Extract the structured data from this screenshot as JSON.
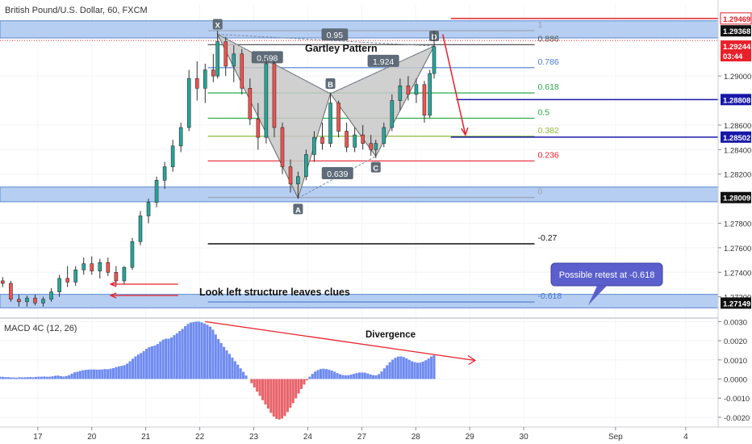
{
  "header": {
    "title": "British Pound/U.S. Dollar, 60, FXCM"
  },
  "macd_label": "MACD 4C (12, 26)",
  "annotations": {
    "pattern_title": "Gartley Pattern",
    "look_left": "Look left structure leaves clues",
    "retest_callout": "Possible retest at -0.618",
    "divergence": "Divergence"
  },
  "colors": {
    "zone_fill": "#a9c6ee",
    "zone_stroke": "#5b88cf",
    "red": "#e8202a",
    "blue": "#1717a8",
    "green": "#27a745",
    "black": "#111111",
    "pattern_fill": "#c8c8c8",
    "callout_bg": "#5a5fcc",
    "macd_pos": "#6f8bf0",
    "macd_neg": "#e8636a"
  },
  "chart_data": {
    "type": "candlestick",
    "price_axis": {
      "ylim": [
        1.2704,
        1.2958
      ],
      "ticks": [
        "1.29000",
        "1.28600",
        "1.28400",
        "1.28200",
        "1.27800",
        "1.27600",
        "1.27400",
        "1.27200"
      ],
      "tick_values": [
        1.29,
        1.286,
        1.284,
        1.282,
        1.278,
        1.276,
        1.274,
        1.272
      ]
    },
    "macd_axis": {
      "ylim": [
        -0.0023,
        0.0031
      ],
      "ticks": [
        "0.0030",
        "0.0020",
        "0.0010",
        "0.0000",
        "-0.0010",
        "-0.0020"
      ],
      "tick_values": [
        0.003,
        0.002,
        0.001,
        0,
        -0.001,
        -0.002
      ]
    },
    "x_axis": {
      "labels": [
        "17",
        "20",
        "21",
        "22",
        "23",
        "24",
        "27",
        "28",
        "29",
        "30",
        "Sep",
        "4"
      ],
      "positions": [
        0.3,
        1.3,
        2.3,
        3.3,
        4.3,
        5.3,
        6.3,
        7.3,
        8.3,
        9.3,
        11.0,
        12.3
      ],
      "xlim": [
        -0.4,
        12.9
      ]
    },
    "price_labels": [
      {
        "text": "1.29469",
        "value": 1.29469,
        "style": "red-outline"
      },
      {
        "text": "1.29368",
        "value": 1.29368,
        "style": "black"
      },
      {
        "text": "1.29244",
        "value": 1.29244,
        "style": "red"
      },
      {
        "text": "03:44",
        "value": 1.29165,
        "style": "red"
      },
      {
        "text": "1.28808",
        "value": 1.28808,
        "style": "blue"
      },
      {
        "text": "1.28502",
        "value": 1.28502,
        "style": "blue"
      },
      {
        "text": "1.28009",
        "value": 1.28009,
        "style": "black"
      },
      {
        "text": "1.27149",
        "value": 1.27149,
        "style": "black"
      }
    ],
    "fib_levels": [
      {
        "label": "1",
        "value": 1.2937,
        "color": "#9aa3b5"
      },
      {
        "label": "0.886",
        "value": 1.29255,
        "color": "#555555"
      },
      {
        "label": "0.786",
        "value": 1.29068,
        "color": "#4a7bd0"
      },
      {
        "label": "0.618",
        "value": 1.28862,
        "color": "#27a745"
      },
      {
        "label": "0.5",
        "value": 1.28656,
        "color": "#27a745"
      },
      {
        "label": "0.382",
        "value": 1.28509,
        "color": "#8cba3a"
      },
      {
        "label": "0.236",
        "value": 1.28308,
        "color": "#e8202a"
      },
      {
        "label": "0",
        "value": 1.2801,
        "color": "#9aa3b5"
      },
      {
        "label": "-0.27",
        "value": 1.27632,
        "color": "#111111"
      },
      {
        "label": "-0.618",
        "value": 1.27158,
        "color": "#4a7bd0"
      }
    ],
    "zones": [
      {
        "from": 1.2931,
        "to": 1.2945
      },
      {
        "from": 1.27975,
        "to": 1.28095
      },
      {
        "from": 1.2711,
        "to": 1.2722
      }
    ],
    "points": [
      {
        "label": "X",
        "x": 3.63,
        "value": 1.2934
      },
      {
        "label": "A",
        "x": 5.12,
        "value": 1.28005
      },
      {
        "label": "B",
        "x": 5.72,
        "value": 1.28856
      },
      {
        "label": "C",
        "x": 6.56,
        "value": 1.28345
      },
      {
        "label": "D",
        "x": 7.64,
        "value": 1.29244
      }
    ],
    "ratios": [
      {
        "label": "0.95",
        "x": 5.8,
        "value": 1.29335
      },
      {
        "label": "0.598",
        "x": 4.55,
        "value": 1.2915
      },
      {
        "label": "1.924",
        "x": 6.7,
        "value": 1.2912
      },
      {
        "label": "0.639",
        "x": 5.85,
        "value": 1.28205
      }
    ],
    "candles": [
      {
        "x": -0.35,
        "o": 1.2733,
        "h": 1.2736,
        "l": 1.2728,
        "c": 1.2731
      },
      {
        "x": -0.2,
        "o": 1.2731,
        "h": 1.2733,
        "l": 1.2716,
        "c": 1.2718
      },
      {
        "x": -0.05,
        "o": 1.2718,
        "h": 1.2722,
        "l": 1.2712,
        "c": 1.2716
      },
      {
        "x": 0.1,
        "o": 1.2716,
        "h": 1.2721,
        "l": 1.2712,
        "c": 1.2719
      },
      {
        "x": 0.25,
        "o": 1.2719,
        "h": 1.2722,
        "l": 1.2713,
        "c": 1.2715
      },
      {
        "x": 0.4,
        "o": 1.2715,
        "h": 1.272,
        "l": 1.2712,
        "c": 1.2718
      },
      {
        "x": 0.55,
        "o": 1.2718,
        "h": 1.2727,
        "l": 1.2716,
        "c": 1.2724
      },
      {
        "x": 0.7,
        "o": 1.2724,
        "h": 1.2738,
        "l": 1.272,
        "c": 1.2735
      },
      {
        "x": 0.85,
        "o": 1.2735,
        "h": 1.2745,
        "l": 1.2728,
        "c": 1.2732
      },
      {
        "x": 1.0,
        "o": 1.2732,
        "h": 1.2745,
        "l": 1.2729,
        "c": 1.2742
      },
      {
        "x": 1.15,
        "o": 1.2742,
        "h": 1.2752,
        "l": 1.2738,
        "c": 1.2747
      },
      {
        "x": 1.3,
        "o": 1.2747,
        "h": 1.2753,
        "l": 1.2738,
        "c": 1.2741
      },
      {
        "x": 1.45,
        "o": 1.2741,
        "h": 1.2751,
        "l": 1.2735,
        "c": 1.2748
      },
      {
        "x": 1.6,
        "o": 1.2748,
        "h": 1.2752,
        "l": 1.2737,
        "c": 1.274
      },
      {
        "x": 1.75,
        "o": 1.274,
        "h": 1.2745,
        "l": 1.2729,
        "c": 1.2733
      },
      {
        "x": 1.9,
        "o": 1.2733,
        "h": 1.2745,
        "l": 1.273,
        "c": 1.2744
      },
      {
        "x": 2.05,
        "o": 1.2744,
        "h": 1.2768,
        "l": 1.2742,
        "c": 1.2765
      },
      {
        "x": 2.2,
        "o": 1.2765,
        "h": 1.279,
        "l": 1.2762,
        "c": 1.2786
      },
      {
        "x": 2.35,
        "o": 1.2786,
        "h": 1.28,
        "l": 1.278,
        "c": 1.2797
      },
      {
        "x": 2.5,
        "o": 1.2797,
        "h": 1.2818,
        "l": 1.2793,
        "c": 1.2815
      },
      {
        "x": 2.65,
        "o": 1.2815,
        "h": 1.283,
        "l": 1.2808,
        "c": 1.2826
      },
      {
        "x": 2.8,
        "o": 1.2826,
        "h": 1.2848,
        "l": 1.2822,
        "c": 1.2843
      },
      {
        "x": 2.95,
        "o": 1.2843,
        "h": 1.2862,
        "l": 1.2838,
        "c": 1.2858
      },
      {
        "x": 3.1,
        "o": 1.2858,
        "h": 1.2905,
        "l": 1.2855,
        "c": 1.2898
      },
      {
        "x": 3.25,
        "o": 1.2898,
        "h": 1.2912,
        "l": 1.288,
        "c": 1.289
      },
      {
        "x": 3.4,
        "o": 1.289,
        "h": 1.291,
        "l": 1.2878,
        "c": 1.2905
      },
      {
        "x": 3.55,
        "o": 1.2905,
        "h": 1.2918,
        "l": 1.2895,
        "c": 1.29
      },
      {
        "x": 3.63,
        "o": 1.29,
        "h": 1.2937,
        "l": 1.2898,
        "c": 1.2928
      },
      {
        "x": 3.78,
        "o": 1.2928,
        "h": 1.2932,
        "l": 1.29,
        "c": 1.2908
      },
      {
        "x": 3.93,
        "o": 1.2908,
        "h": 1.2925,
        "l": 1.2895,
        "c": 1.2918
      },
      {
        "x": 4.08,
        "o": 1.2918,
        "h": 1.2922,
        "l": 1.2885,
        "c": 1.289
      },
      {
        "x": 4.23,
        "o": 1.289,
        "h": 1.2898,
        "l": 1.286,
        "c": 1.2865
      },
      {
        "x": 4.38,
        "o": 1.2865,
        "h": 1.2878,
        "l": 1.284,
        "c": 1.285
      },
      {
        "x": 4.53,
        "o": 1.285,
        "h": 1.2915,
        "l": 1.2845,
        "c": 1.291
      },
      {
        "x": 4.68,
        "o": 1.291,
        "h": 1.2912,
        "l": 1.285,
        "c": 1.2858
      },
      {
        "x": 4.83,
        "o": 1.2858,
        "h": 1.2862,
        "l": 1.282,
        "c": 1.2826
      },
      {
        "x": 4.98,
        "o": 1.2826,
        "h": 1.2832,
        "l": 1.2805,
        "c": 1.2812
      },
      {
        "x": 5.12,
        "o": 1.2812,
        "h": 1.2822,
        "l": 1.28,
        "c": 1.2818
      },
      {
        "x": 5.27,
        "o": 1.2818,
        "h": 1.284,
        "l": 1.2815,
        "c": 1.2836
      },
      {
        "x": 5.42,
        "o": 1.2836,
        "h": 1.2855,
        "l": 1.283,
        "c": 1.285
      },
      {
        "x": 5.57,
        "o": 1.285,
        "h": 1.2862,
        "l": 1.284,
        "c": 1.2845
      },
      {
        "x": 5.72,
        "o": 1.2845,
        "h": 1.2886,
        "l": 1.2842,
        "c": 1.2878
      },
      {
        "x": 5.87,
        "o": 1.2878,
        "h": 1.288,
        "l": 1.285,
        "c": 1.2855
      },
      {
        "x": 6.02,
        "o": 1.2855,
        "h": 1.2862,
        "l": 1.2838,
        "c": 1.2842
      },
      {
        "x": 6.17,
        "o": 1.2842,
        "h": 1.2858,
        "l": 1.2838,
        "c": 1.2852
      },
      {
        "x": 6.32,
        "o": 1.2852,
        "h": 1.286,
        "l": 1.284,
        "c": 1.2845
      },
      {
        "x": 6.47,
        "o": 1.2845,
        "h": 1.2852,
        "l": 1.2835,
        "c": 1.284
      },
      {
        "x": 6.56,
        "o": 1.284,
        "h": 1.2848,
        "l": 1.2833,
        "c": 1.2845
      },
      {
        "x": 6.71,
        "o": 1.2845,
        "h": 1.2862,
        "l": 1.2842,
        "c": 1.2858
      },
      {
        "x": 6.86,
        "o": 1.2858,
        "h": 1.2885,
        "l": 1.2855,
        "c": 1.288
      },
      {
        "x": 7.01,
        "o": 1.288,
        "h": 1.2898,
        "l": 1.2872,
        "c": 1.2892
      },
      {
        "x": 7.16,
        "o": 1.2892,
        "h": 1.29,
        "l": 1.288,
        "c": 1.2885
      },
      {
        "x": 7.31,
        "o": 1.2885,
        "h": 1.2898,
        "l": 1.2878,
        "c": 1.2893
      },
      {
        "x": 7.46,
        "o": 1.2893,
        "h": 1.2896,
        "l": 1.2862,
        "c": 1.2868
      },
      {
        "x": 7.56,
        "o": 1.2868,
        "h": 1.2905,
        "l": 1.2866,
        "c": 1.2902
      },
      {
        "x": 7.64,
        "o": 1.2902,
        "h": 1.2937,
        "l": 1.2898,
        "c": 1.2924
      }
    ],
    "macd": {
      "x_start": -0.4,
      "x_end": 7.64,
      "values": [
        0.00012,
        0.00011,
        0.0001,
        0.0001,
        8e-05,
        8e-05,
        7e-05,
        9e-05,
        8e-05,
        9e-05,
        0.0001,
        0.0001,
        9e-05,
        0.00011,
        0.00012,
        0.00012,
        0.00013,
        0.00012,
        0.00012,
        0.00014,
        0.00017,
        0.00018,
        0.00015,
        0.00013,
        0.00016,
        0.0002,
        0.00028,
        0.00035,
        0.00038,
        0.00042,
        0.00046,
        0.00048,
        0.00049,
        0.0005,
        0.0005,
        0.00049,
        0.00049,
        0.0005,
        0.00052,
        0.00051,
        0.00054,
        0.00057,
        0.00062,
        0.00066,
        0.00069,
        0.00072,
        0.0008,
        0.00093,
        0.00106,
        0.00118,
        0.00128,
        0.00136,
        0.00146,
        0.00158,
        0.00167,
        0.00171,
        0.00175,
        0.00183,
        0.00195,
        0.00206,
        0.00211,
        0.00211,
        0.00217,
        0.00229,
        0.00239,
        0.00251,
        0.00262,
        0.00276,
        0.00288,
        0.00295,
        0.00298,
        0.003,
        0.003,
        0.00296,
        0.0029,
        0.00283,
        0.00274,
        0.00258,
        0.00233,
        0.00209,
        0.00188,
        0.00168,
        0.00149,
        0.00131,
        0.00112,
        0.00093,
        0.00075,
        0.00056,
        0.00037,
        0.00018,
        0.0,
        -0.00022,
        -0.00044,
        -0.00066,
        -0.00088,
        -0.00111,
        -0.00133,
        -0.00155,
        -0.00177,
        -0.00196,
        -0.00208,
        -0.00212,
        -0.00207,
        -0.00193,
        -0.00173,
        -0.0015,
        -0.00126,
        -0.00101,
        -0.00076,
        -0.00052,
        -0.00029,
        -7e-05,
        0.00012,
        0.00027,
        0.00039,
        0.00047,
        0.00052,
        0.00054,
        0.00052,
        0.00049,
        0.00044,
        0.00038,
        0.00031,
        0.00025,
        0.00021,
        0.00019,
        0.0002,
        0.00023,
        0.00027,
        0.00031,
        0.00034,
        0.00034,
        0.00033,
        0.00029,
        0.00024,
        0.0002,
        0.00019,
        0.00025,
        0.00039,
        0.00056,
        0.00072,
        0.00088,
        0.00101,
        0.00111,
        0.00117,
        0.00118,
        0.00115,
        0.00108,
        0.001,
        0.00093,
        0.00088,
        0.00085,
        0.00086,
        0.00091,
        0.00098,
        0.00107,
        0.00118,
        0.00124
      ]
    }
  }
}
